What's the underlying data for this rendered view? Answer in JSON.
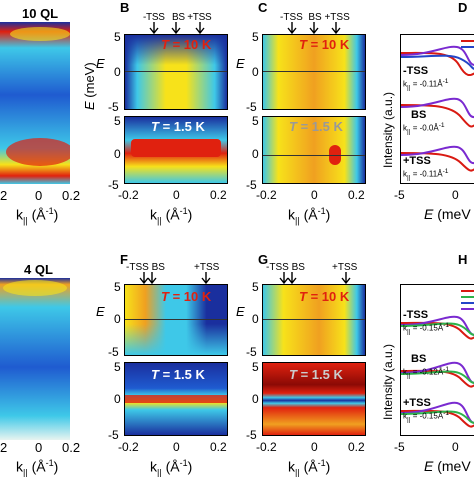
{
  "colors": {
    "blue": "#1a2f9e",
    "cyan": "#3ec8e8",
    "yellow": "#f7e21a",
    "red": "#e0210f",
    "darkred": "#8b0a05",
    "line_red": "#d91a12",
    "line_blue": "#2346c8",
    "line_purple": "#7a2ad0",
    "line_green": "#2cb34a"
  },
  "top": {
    "a_title": "10 QL",
    "a_ticks": [
      "-0.2",
      "0",
      "0.2"
    ],
    "a_xlabel": "k",
    "a_xsub": "||",
    "a_xunit": "(Å",
    "a_xexp": "-1",
    "a_xend": ")",
    "panels": [
      {
        "letter": "B",
        "arrows": [
          "-TSS",
          "BS",
          "+TSS"
        ],
        "temp_top": "= 10 K",
        "temp_bot": "= 1.5 K"
      },
      {
        "letter": "C",
        "arrows": [
          "-TSS",
          "BS",
          "+TSS"
        ],
        "temp_top": "= 10 K",
        "temp_bot": "= 1.5 K"
      },
      {
        "letter": "D"
      }
    ],
    "yticks": [
      "5",
      "0",
      "-5"
    ],
    "xticks": [
      "-0.2",
      "0",
      "0.2"
    ],
    "d_labels": [
      "-TSS",
      "BS",
      "+TSS"
    ],
    "d_k": [
      "= -0.11Å",
      "= -0.0Å",
      "= -0.11Å"
    ],
    "d_xticks": [
      "-5",
      "0"
    ]
  },
  "bottom": {
    "a_title": "4 QL",
    "a_ticks": [
      "-0.2",
      "0",
      "0.2"
    ],
    "panels": [
      {
        "letter": "F",
        "arrows": [
          "-TSS",
          "BS",
          "+TSS"
        ],
        "temp_top": "= 10 K",
        "temp_bot": "= 1.5 K"
      },
      {
        "letter": "G",
        "arrows": [
          "-TSS",
          "BS",
          "+TSS"
        ],
        "temp_top": "= 10 K",
        "temp_bot": "= 1.5 K"
      },
      {
        "letter": "H"
      }
    ],
    "yticks": [
      "5",
      "0",
      "-5"
    ],
    "xticks": [
      "-0.2",
      "0",
      "0.2"
    ],
    "d_labels": [
      "-TSS",
      "BS",
      "+TSS"
    ],
    "d_k": [
      "= -0.15Å",
      "= -0.12Å",
      "= -0.15Å"
    ],
    "d_xticks": [
      "-5",
      "0"
    ]
  },
  "axis": {
    "e_label": "E",
    "e_unit": " (meV)",
    "t_label": "T",
    "intensity": "Intensity (a.u.)",
    "d_xlabel": "E (meV"
  }
}
